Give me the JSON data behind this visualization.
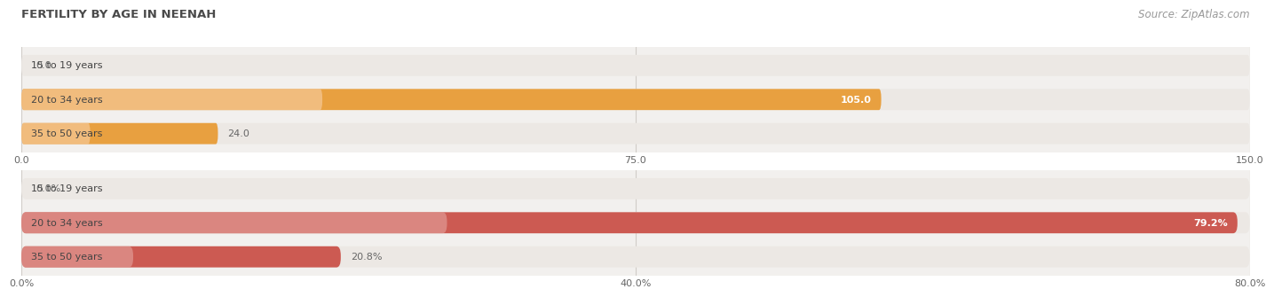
{
  "title": "FERTILITY BY AGE IN NEENAH",
  "source": "Source: ZipAtlas.com",
  "title_color": "#4a4a4a",
  "source_color": "#999999",
  "top_chart": {
    "categories": [
      "15 to 19 years",
      "20 to 34 years",
      "35 to 50 years"
    ],
    "values": [
      0.0,
      105.0,
      24.0
    ],
    "xlim": [
      0,
      150
    ],
    "xticks": [
      0.0,
      75.0,
      150.0
    ],
    "xtick_labels": [
      "0.0",
      "75.0",
      "150.0"
    ],
    "bar_color": "#e8a040",
    "bar_color_light": "#f5c898",
    "track_color": "#ece8e4",
    "value_label_color_inside": "#ffffff",
    "value_label_color_outside": "#666666",
    "bg_color": "#f2f0ee"
  },
  "bottom_chart": {
    "categories": [
      "15 to 19 years",
      "20 to 34 years",
      "35 to 50 years"
    ],
    "values": [
      0.0,
      79.2,
      20.8
    ],
    "xlim": [
      0,
      80
    ],
    "xticks": [
      0.0,
      40.0,
      80.0
    ],
    "xtick_labels": [
      "0.0%",
      "40.0%",
      "80.0%"
    ],
    "bar_color": "#cc5a52",
    "bar_color_light": "#e09a94",
    "track_color": "#ece8e4",
    "value_label_color_inside": "#ffffff",
    "value_label_color_outside": "#666666",
    "bg_color": "#f2f0ee"
  },
  "cat_label_color": "#555555",
  "cat_label_fontsize": 8,
  "value_fontsize": 8,
  "tick_fontsize": 8,
  "figsize": [
    14.06,
    3.31
  ],
  "dpi": 100
}
